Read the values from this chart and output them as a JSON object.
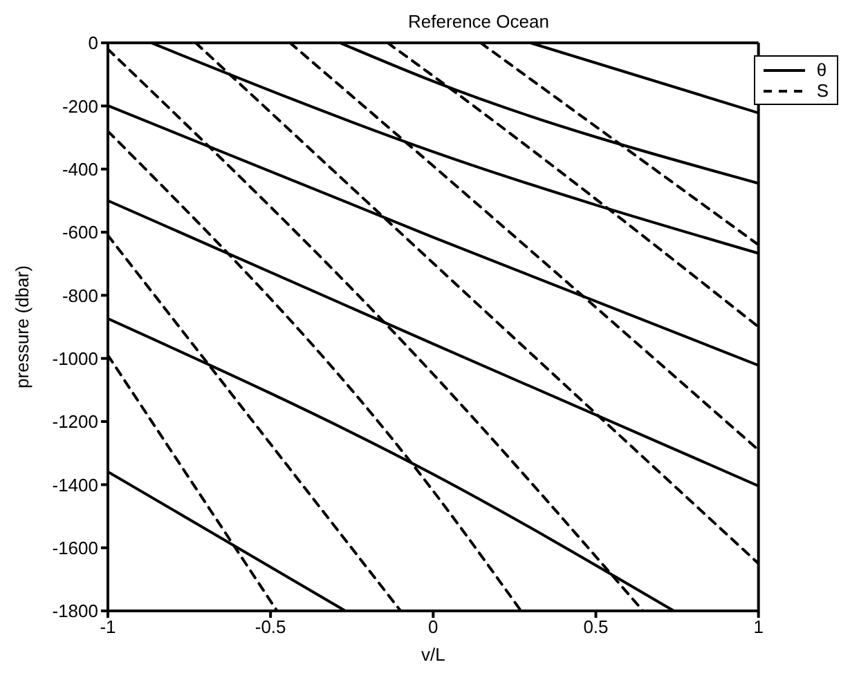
{
  "chart_data": {
    "type": "line",
    "title": "Reference Ocean",
    "xlabel": "v/L",
    "ylabel": "pressure (dbar)",
    "xlim": [
      -1,
      1
    ],
    "xticks": [
      -1,
      -0.5,
      0,
      0.5,
      1
    ],
    "ylim": [
      -1800,
      0
    ],
    "yticks": [
      0,
      -200,
      -400,
      -600,
      -800,
      -1000,
      -1200,
      -1400,
      -1600,
      -1800
    ],
    "legend": "top right",
    "grid": false,
    "marker": "none",
    "series": [
      {
        "name": "θ",
        "color": "#000000",
        "line_style": "solid",
        "x": [
          0.299,
          1,
          null,
          -0.287,
          0,
          1,
          null,
          -0.867,
          0,
          1,
          null,
          -1,
          0,
          1,
          null,
          -1,
          0,
          1,
          null,
          -1,
          0,
          0.74,
          null,
          -1,
          -0.27
        ],
        "values": [
          0,
          -222,
          null,
          0,
          -122,
          -445,
          null,
          0,
          -345,
          -667,
          null,
          -199,
          -616,
          -1022,
          null,
          -500,
          -954,
          -1404,
          null,
          -874,
          -1367,
          -1800,
          null,
          -1359,
          -1800
        ]
      },
      {
        "name": "S",
        "color": "#000000",
        "line_style": "dashed",
        "x": [
          0.146,
          1,
          null,
          -0.14,
          0,
          1,
          null,
          -0.44,
          0,
          1,
          null,
          -0.73,
          0,
          1,
          null,
          -1,
          0,
          0.645,
          null,
          -1,
          0,
          0.27,
          null,
          -1,
          -0.1,
          null,
          -1,
          -0.48
        ],
        "values": [
          0,
          -640,
          null,
          0,
          -105,
          -900,
          null,
          0,
          -390,
          -1290,
          null,
          0,
          -698,
          -1650,
          null,
          -20,
          -1050,
          -1800,
          null,
          -280,
          -1420,
          -1800,
          null,
          -610,
          -1800,
          null,
          -990,
          -1800
        ]
      }
    ]
  }
}
